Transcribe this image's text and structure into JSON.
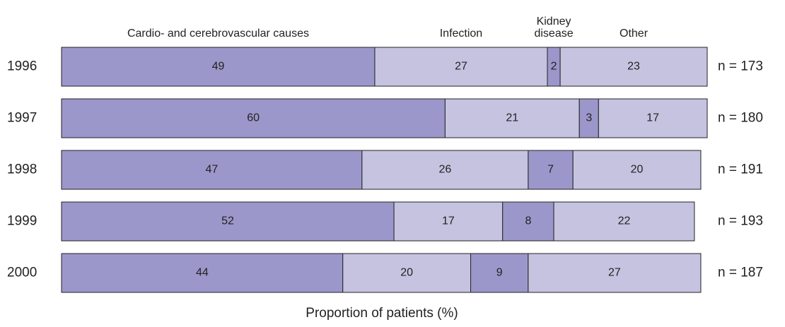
{
  "chart_data": {
    "type": "stacked-bar-horizontal",
    "categories": [
      "1996",
      "1997",
      "1998",
      "1999",
      "2000"
    ],
    "series": [
      {
        "name": "Cardio- and cerebrovascular causes",
        "color": "#9c97ca",
        "values": [
          49,
          60,
          47,
          52,
          44
        ]
      },
      {
        "name": "Infection",
        "color": "#c6c3e1",
        "values": [
          27,
          21,
          26,
          17,
          20
        ]
      },
      {
        "name": "Kidney disease",
        "color": "#9c97ca",
        "values": [
          2,
          3,
          7,
          8,
          9
        ]
      },
      {
        "name": "Other",
        "color": "#c6c3e1",
        "values": [
          23,
          17,
          20,
          22,
          27
        ]
      }
    ],
    "annotations": [
      "n = 173",
      "n = 180",
      "n = 191",
      "n = 193",
      "n = 187"
    ],
    "xlabel": "Proportion of patients (%)",
    "xlim": [
      0,
      101
    ]
  }
}
